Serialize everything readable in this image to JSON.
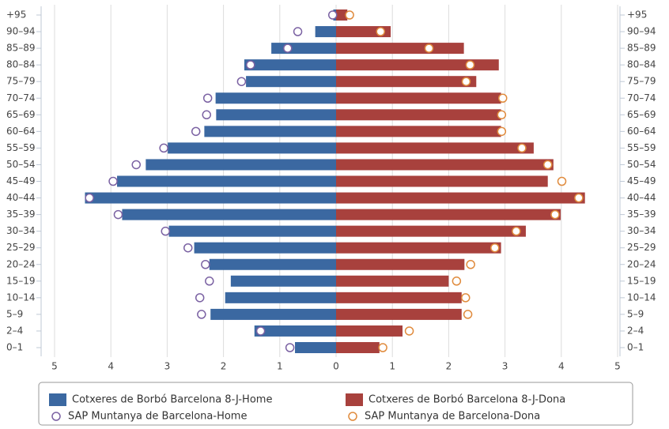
{
  "chart_data": {
    "type": "bar",
    "orientation": "horizontal",
    "diverging": true,
    "categories": [
      "+95",
      "90–94",
      "85–89",
      "80–84",
      "75–79",
      "70–74",
      "65–69",
      "60–64",
      "55–59",
      "50–54",
      "45–49",
      "40–44",
      "35–39",
      "30–34",
      "25–29",
      "20–24",
      "15–19",
      "10–14",
      "5–9",
      "2–4",
      "0–1"
    ],
    "xlim": [
      -5,
      5
    ],
    "xticks": [
      {
        "value": -5,
        "label": "5"
      },
      {
        "value": -4,
        "label": "4"
      },
      {
        "value": -3,
        "label": "3"
      },
      {
        "value": -2,
        "label": "2"
      },
      {
        "value": -1,
        "label": "1"
      },
      0,
      1,
      2,
      3,
      4,
      5
    ],
    "grid": true,
    "legend": "bottom",
    "series": [
      {
        "name": "Cotxeres de Borbó Barcelona 8-J-Home",
        "kind": "bar",
        "color": "#3b68a1",
        "values": [
          -0.05,
          -0.37,
          -1.15,
          -1.63,
          -1.6,
          -2.14,
          -2.13,
          -2.34,
          -2.99,
          -3.38,
          -3.89,
          -4.46,
          -3.8,
          -2.97,
          -2.52,
          -2.25,
          -1.87,
          -1.97,
          -2.23,
          -1.45,
          -0.73
        ]
      },
      {
        "name": "Cotxeres de Borbó Barcelona 8-J-Dona",
        "kind": "bar",
        "color": "#a8413d",
        "values": [
          0.2,
          0.97,
          2.27,
          2.89,
          2.49,
          2.93,
          2.93,
          2.93,
          3.51,
          3.86,
          3.76,
          4.42,
          3.99,
          3.37,
          2.93,
          2.28,
          2.0,
          2.23,
          2.23,
          1.18,
          0.77
        ]
      },
      {
        "name": "SAP Muntanya de Barcelona-Home",
        "kind": "marker",
        "color": "#7b62a3",
        "values": [
          -0.06,
          -0.68,
          -0.86,
          -1.52,
          -1.68,
          -2.28,
          -2.3,
          -2.49,
          -3.06,
          -3.55,
          -3.96,
          -4.38,
          -3.87,
          -3.03,
          -2.63,
          -2.32,
          -2.25,
          -2.42,
          -2.39,
          -1.34,
          -0.82
        ]
      },
      {
        "name": "SAP Muntanya de Barcelona-Dona",
        "kind": "marker",
        "color": "#e08b3d",
        "values": [
          0.24,
          0.79,
          1.65,
          2.38,
          2.31,
          2.96,
          2.94,
          2.94,
          3.3,
          3.76,
          4.01,
          4.31,
          3.89,
          3.2,
          2.82,
          2.39,
          2.14,
          2.3,
          2.34,
          1.3,
          0.83
        ]
      }
    ]
  }
}
